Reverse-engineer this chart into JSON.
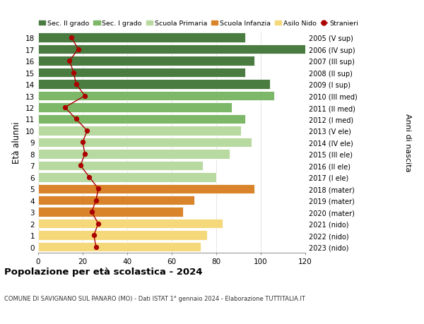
{
  "ages": [
    18,
    17,
    16,
    15,
    14,
    13,
    12,
    11,
    10,
    9,
    8,
    7,
    6,
    5,
    4,
    3,
    2,
    1,
    0
  ],
  "right_labels": [
    "2005 (V sup)",
    "2006 (IV sup)",
    "2007 (III sup)",
    "2008 (II sup)",
    "2009 (I sup)",
    "2010 (III med)",
    "2011 (II med)",
    "2012 (I med)",
    "2013 (V ele)",
    "2014 (IV ele)",
    "2015 (III ele)",
    "2016 (II ele)",
    "2017 (I ele)",
    "2018 (mater)",
    "2019 (mater)",
    "2020 (mater)",
    "2021 (nido)",
    "2022 (nido)",
    "2023 (nido)"
  ],
  "bar_values": [
    93,
    120,
    97,
    93,
    104,
    106,
    87,
    93,
    91,
    96,
    86,
    74,
    80,
    97,
    70,
    65,
    83,
    76,
    73
  ],
  "bar_colors": [
    "#4a7c42",
    "#4a7c42",
    "#4a7c42",
    "#4a7c42",
    "#4a7c42",
    "#7db868",
    "#7db868",
    "#7db868",
    "#b8d9a0",
    "#b8d9a0",
    "#b8d9a0",
    "#b8d9a0",
    "#b8d9a0",
    "#d9832a",
    "#d9832a",
    "#d9832a",
    "#f5d87a",
    "#f5d87a",
    "#f5d87a"
  ],
  "stranieri_values": [
    15,
    18,
    14,
    16,
    17,
    21,
    12,
    17,
    22,
    20,
    21,
    19,
    23,
    27,
    26,
    24,
    27,
    25,
    26
  ],
  "stranieri_color": "#aa0000",
  "ylabel_left": "Età alunni",
  "ylabel_right": "Anni di nascita",
  "xlim": [
    0,
    120
  ],
  "title": "Popolazione per età scolastica - 2024",
  "subtitle": "COMUNE DI SAVIGNANO SUL PANARO (MO) - Dati ISTAT 1° gennaio 2024 - Elaborazione TUTTITALIA.IT",
  "legend_labels": [
    "Sec. II grado",
    "Sec. I grado",
    "Scuola Primaria",
    "Scuola Infanzia",
    "Asilo Nido",
    "Stranieri"
  ],
  "legend_colors": [
    "#4a7c42",
    "#7db868",
    "#b8d9a0",
    "#d9832a",
    "#f5d87a",
    "#aa0000"
  ],
  "bg_color": "#ffffff",
  "bar_height": 0.82,
  "grid_color": "#cccccc",
  "xticks": [
    0,
    20,
    40,
    60,
    80,
    100,
    120
  ]
}
